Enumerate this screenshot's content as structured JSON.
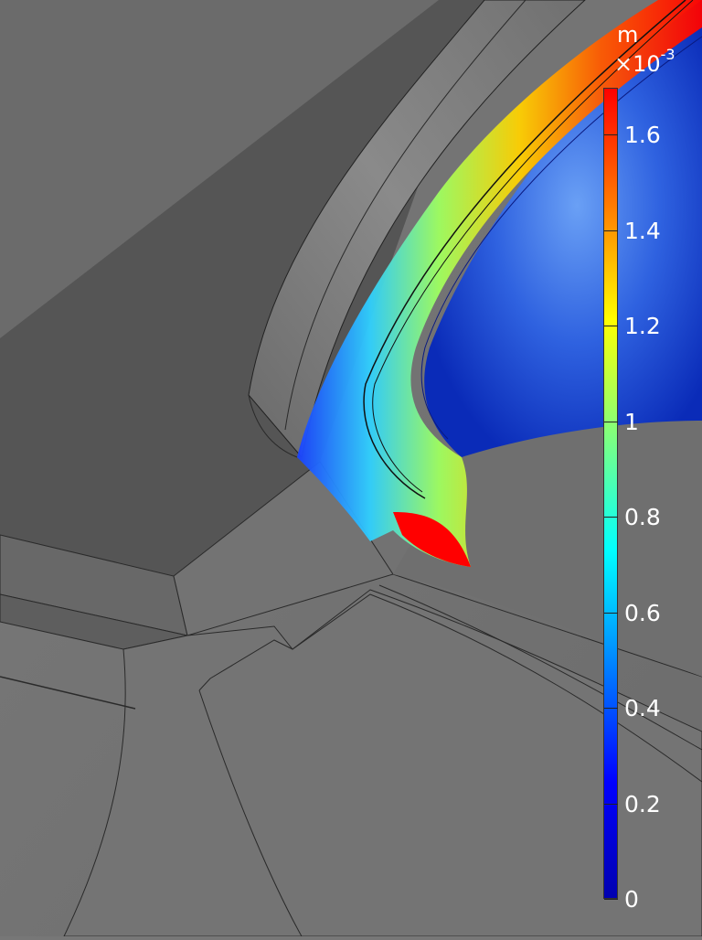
{
  "legend": {
    "unit": "m",
    "exponent_base": "×10",
    "exponent_power": "-3",
    "ticks": [
      "1.6",
      "1.4",
      "1.2",
      "1",
      "0.8",
      "0.6",
      "0.4",
      "0.2",
      "0"
    ],
    "colors": [
      "#ff0000",
      "#ff7a00",
      "#ffff00",
      "#7fff7f",
      "#00ffff",
      "#0080ff",
      "#0000ff",
      "#0000b0"
    ]
  }
}
